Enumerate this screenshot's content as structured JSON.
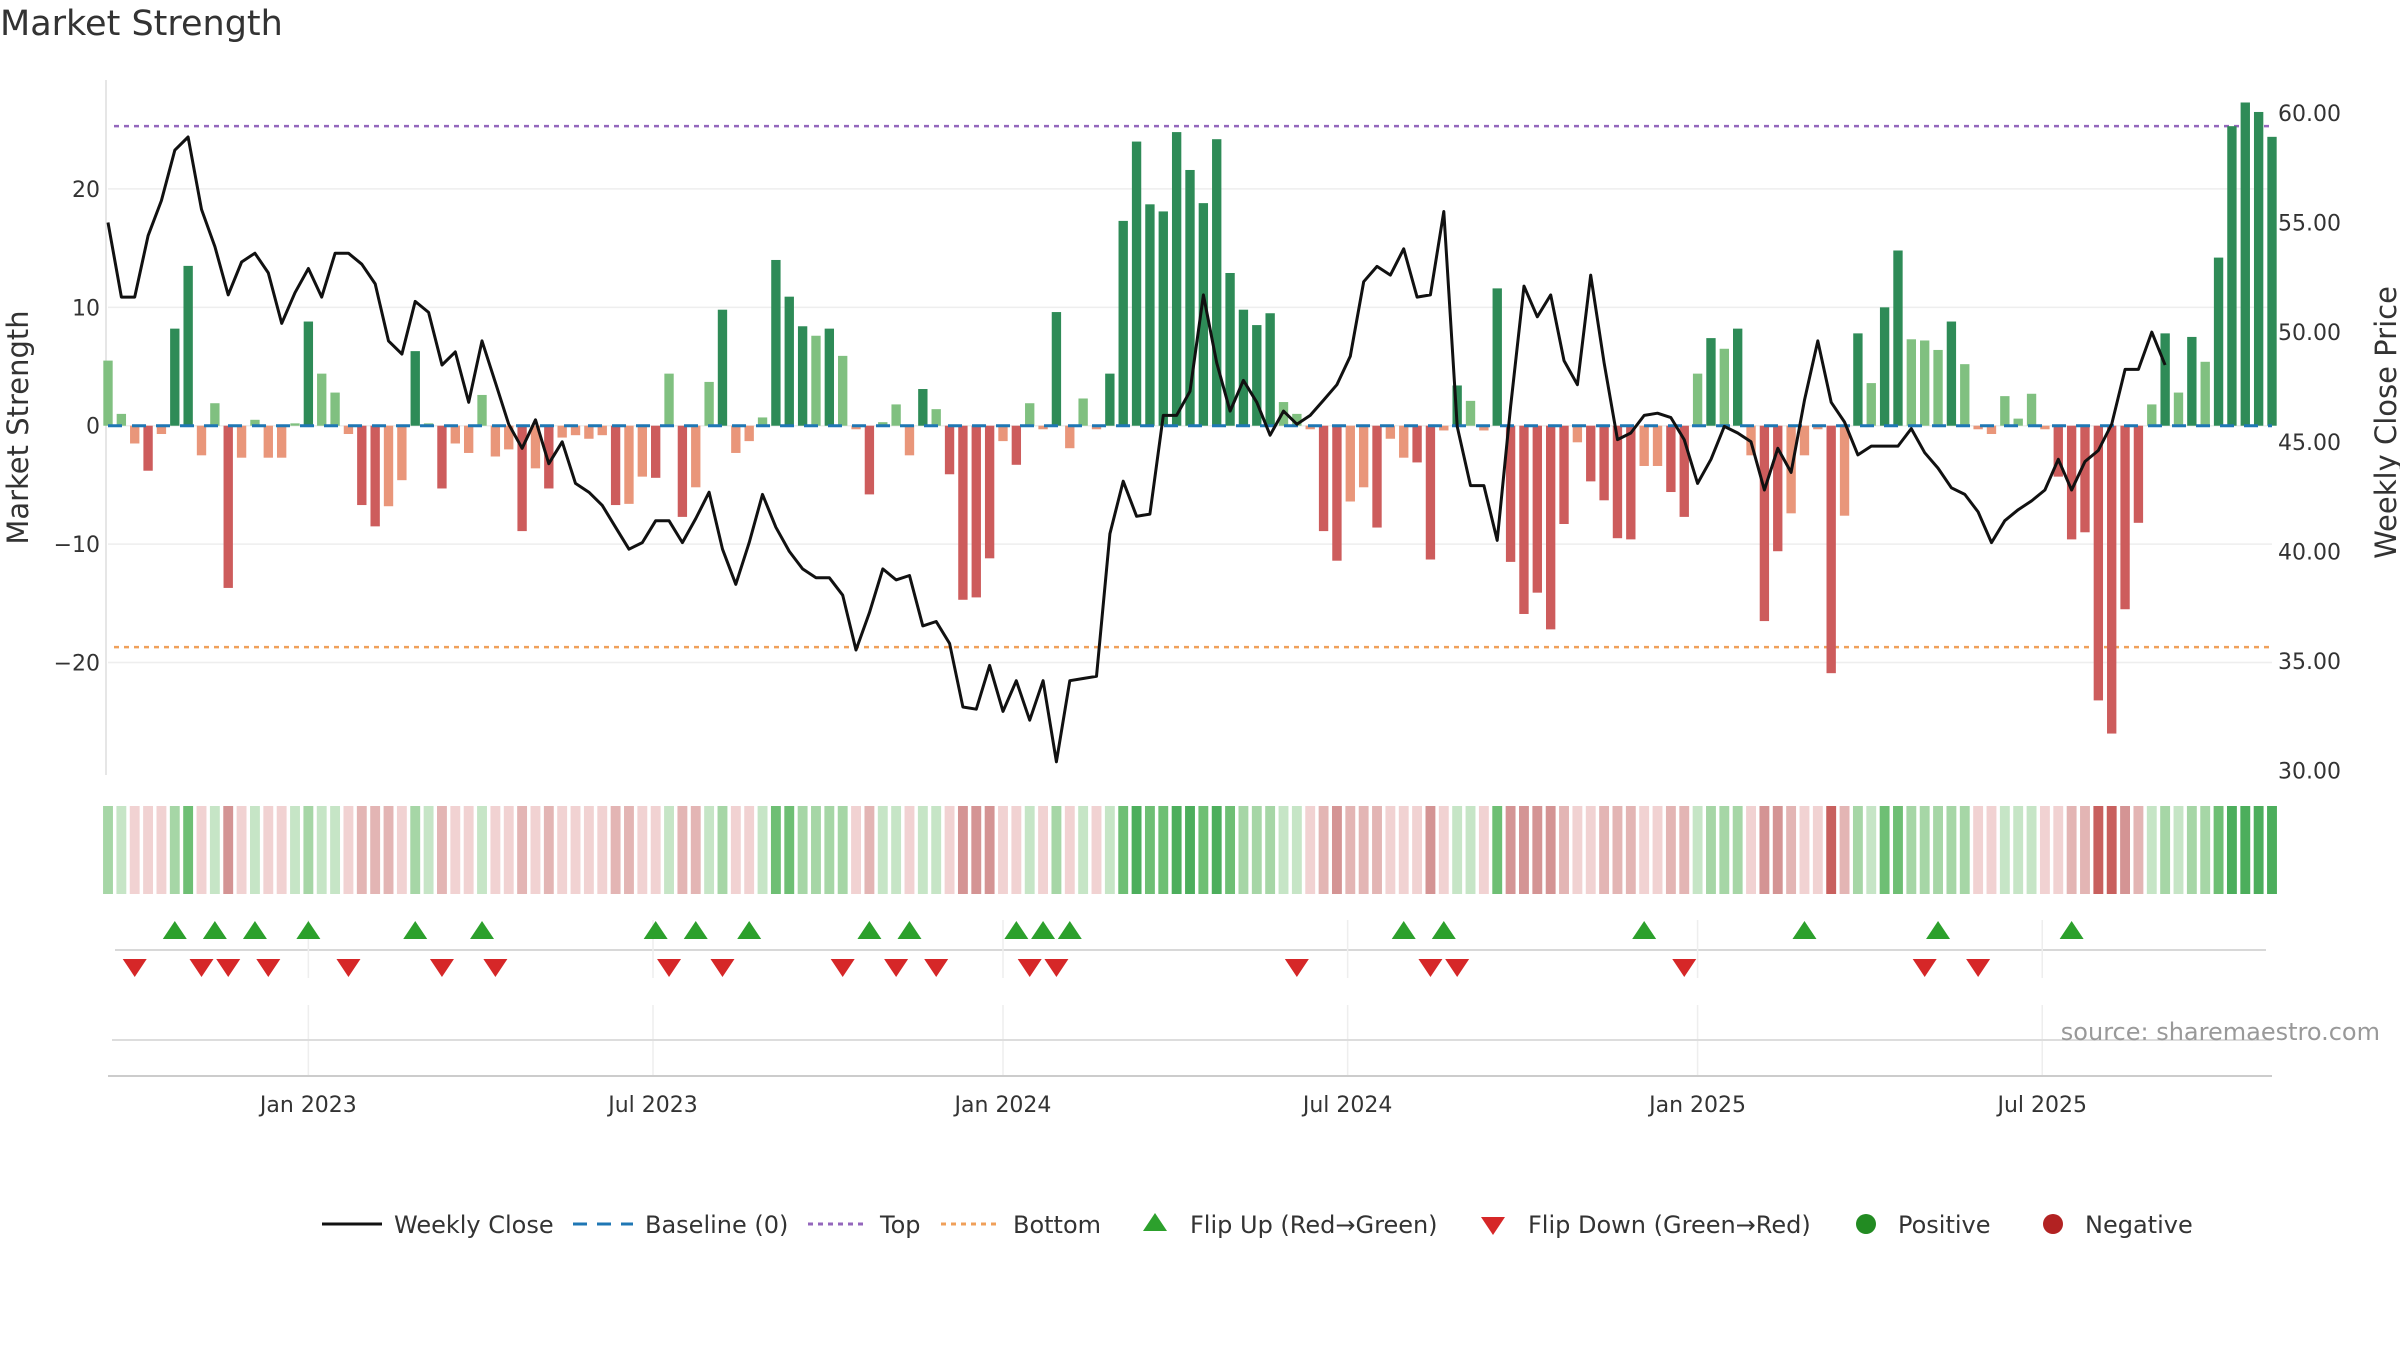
{
  "chart_data": {
    "type": "bar",
    "title": "Market Strength",
    "ylabel_left": "Market Strength",
    "ylabel_right": "Weekly Close Price",
    "left_ylim": [
      -29.5,
      29.2
    ],
    "right_ylim": [
      29.8,
      61.5
    ],
    "left_ticks": [
      -20,
      -10,
      0,
      10,
      20
    ],
    "left_tick_labels": [
      "−20",
      "−10",
      "0",
      "10",
      "20"
    ],
    "right_ticks": [
      30,
      35,
      40,
      45,
      50,
      55,
      60
    ],
    "right_tick_labels": [
      "30.00",
      "35.00",
      "40.00",
      "45.00",
      "50.00",
      "55.00",
      "60.00"
    ],
    "x_tick_labels": [
      "Jan 2023",
      "Jul 2023",
      "Jan 2024",
      "Jul 2024",
      "Jan 2025",
      "Jul 2025"
    ],
    "x_tick_indices": [
      15.0,
      40.8,
      67.0,
      92.8,
      119.0,
      144.8
    ],
    "top_line": 25.3,
    "bottom_line": -18.7,
    "strength": [
      5.5,
      1,
      -1.5,
      -3.8,
      -0.7,
      8.2,
      13.5,
      -2.5,
      1.9,
      -13.7,
      -2.7,
      0.5,
      -2.7,
      -2.7,
      0.2,
      8.8,
      4.4,
      2.8,
      -0.7,
      -6.7,
      -8.5,
      -6.8,
      -4.6,
      6.3,
      0.2,
      -5.3,
      -1.5,
      -2.3,
      2.6,
      -2.6,
      -2,
      -8.9,
      -3.6,
      -5.3,
      -1,
      -0.8,
      -1.1,
      -0.8,
      -6.7,
      -6.6,
      -4.3,
      -4.4,
      4.4,
      -7.7,
      -5.2,
      3.7,
      9.8,
      -2.3,
      -1.3,
      0.7,
      14,
      10.9,
      8.4,
      7.6,
      8.2,
      5.9,
      -0.3,
      -5.8,
      0.3,
      1.8,
      -2.5,
      3.1,
      1.4,
      -4.1,
      -14.7,
      -14.5,
      -11.2,
      -1.3,
      -3.3,
      1.9,
      -0.3,
      9.6,
      -1.9,
      2.3,
      -0.3,
      4.4,
      17.3,
      24,
      18.7,
      18.1,
      24.8,
      21.6,
      18.8,
      24.2,
      12.9,
      9.8,
      8.5,
      9.5,
      2,
      1,
      -0.3,
      -8.9,
      -11.4,
      -6.4,
      -5.2,
      -8.6,
      -1.1,
      -2.7,
      -3.1,
      -11.3,
      -0.4,
      3.4,
      2.1,
      -0.4,
      11.6,
      -11.5,
      -15.9,
      -14.1,
      -17.2,
      -8.3,
      -1.4,
      -4.7,
      -6.3,
      -9.5,
      -9.6,
      -3.4,
      -3.4,
      -5.6,
      -7.7,
      4.4,
      7.4,
      6.5,
      8.2,
      -2.5,
      -16.5,
      -10.6,
      -7.4,
      -2.5,
      -0.3,
      -20.9,
      -7.6,
      7.8,
      3.6,
      10,
      14.8,
      7.3,
      7.2,
      6.4,
      8.8,
      5.2,
      -0.3,
      -0.7,
      2.5,
      0.6,
      2.7,
      -0.3,
      -4.3,
      -9.6,
      -9,
      -23.2,
      -26,
      -15.5,
      -8.2,
      1.8,
      7.8,
      2.8,
      7.5,
      5.4,
      14.2,
      25.3,
      27.3,
      26.5,
      24.4
    ],
    "close": [
      55,
      51.6,
      51.6,
      54.4,
      56,
      58.3,
      58.9,
      55.6,
      53.9,
      51.7,
      53.2,
      53.6,
      52.7,
      50.4,
      51.8,
      52.9,
      51.6,
      53.6,
      53.6,
      53.1,
      52.2,
      49.6,
      49,
      51.4,
      50.9,
      48.5,
      49.1,
      46.8,
      49.6,
      47.7,
      45.8,
      44.7,
      46,
      44,
      45,
      43.1,
      42.7,
      42.1,
      41.1,
      40.1,
      40.4,
      41.4,
      41.4,
      40.4,
      41.5,
      42.7,
      40.1,
      38.5,
      40.4,
      42.6,
      41.1,
      40,
      39.2,
      38.8,
      38.8,
      38,
      35.5,
      37.2,
      39.2,
      38.7,
      38.9,
      36.6,
      36.8,
      35.8,
      32.9,
      32.8,
      34.8,
      32.7,
      34.1,
      32.3,
      34.1,
      30.4,
      34.1,
      34.2,
      34.3,
      40.8,
      43.2,
      41.6,
      41.7,
      46.2,
      46.2,
      47.3,
      51.7,
      48.6,
      46.4,
      47.8,
      46.8,
      45.3,
      46.4,
      45.8,
      46.2,
      46.9,
      47.6,
      48.9,
      52.3,
      53,
      52.6,
      53.8,
      51.6,
      51.7,
      55.5,
      45.7,
      43,
      43,
      40.5,
      46.6,
      52.1,
      50.7,
      51.7,
      48.7,
      47.6,
      52.6,
      48.6,
      45.1,
      45.4,
      46.2,
      46.3,
      46.1,
      45.1,
      43.1,
      44.2,
      45.7,
      45.4,
      45,
      42.8,
      44.7,
      43.6,
      46.9,
      49.6,
      46.8,
      45.9,
      44.4,
      44.8,
      44.8,
      44.8,
      45.6,
      44.5,
      43.8,
      42.9,
      42.6,
      41.8,
      40.4,
      41.4,
      41.9,
      42.3,
      42.8,
      44.2,
      42.8,
      44.1,
      44.6,
      45.8,
      48.3,
      48.3,
      50,
      48.5
    ],
    "marks_up": [
      5,
      8,
      11,
      15,
      23,
      28,
      41,
      44,
      48,
      57,
      60,
      68,
      70,
      72,
      97,
      100,
      115,
      127,
      137,
      147
    ],
    "marks_down": [
      2,
      7,
      9,
      12,
      18,
      25,
      29,
      42,
      46,
      55,
      59,
      62,
      69,
      71,
      89,
      99,
      101,
      118,
      136,
      140
    ],
    "legend": [
      {
        "label": "Weekly Close",
        "kind": "line-solid",
        "color": "#111111"
      },
      {
        "label": "Baseline (0)",
        "kind": "line-dashed",
        "color": "#1f77b4"
      },
      {
        "label": "Top",
        "kind": "line-dotted",
        "color": "#9467bd"
      },
      {
        "label": "Bottom",
        "kind": "line-dotted",
        "color": "#f0a05a"
      },
      {
        "label": "Flip Up (Red→Green)",
        "kind": "triangle-up",
        "color": "#2ca02c"
      },
      {
        "label": "Flip Down (Green→Red)",
        "kind": "triangle-down",
        "color": "#d62728"
      },
      {
        "label": "Positive",
        "kind": "dot",
        "color": "#228b22"
      },
      {
        "label": "Negative",
        "kind": "dot",
        "color": "#b22222"
      }
    ],
    "source": "source: sharemaestro.com",
    "colors": {
      "pos_dark": "#2e8b57",
      "pos_light": "#80c080",
      "neg_dark": "#cd5c5c",
      "neg_light": "#e9967a",
      "close": "#111111",
      "baseline": "#1f77b4",
      "top": "#9467bd",
      "bottom": "#f0a05a",
      "flip_up": "#2ca02c",
      "flip_down": "#d62728"
    },
    "grid": true,
    "legend_position": "bottom-center"
  }
}
